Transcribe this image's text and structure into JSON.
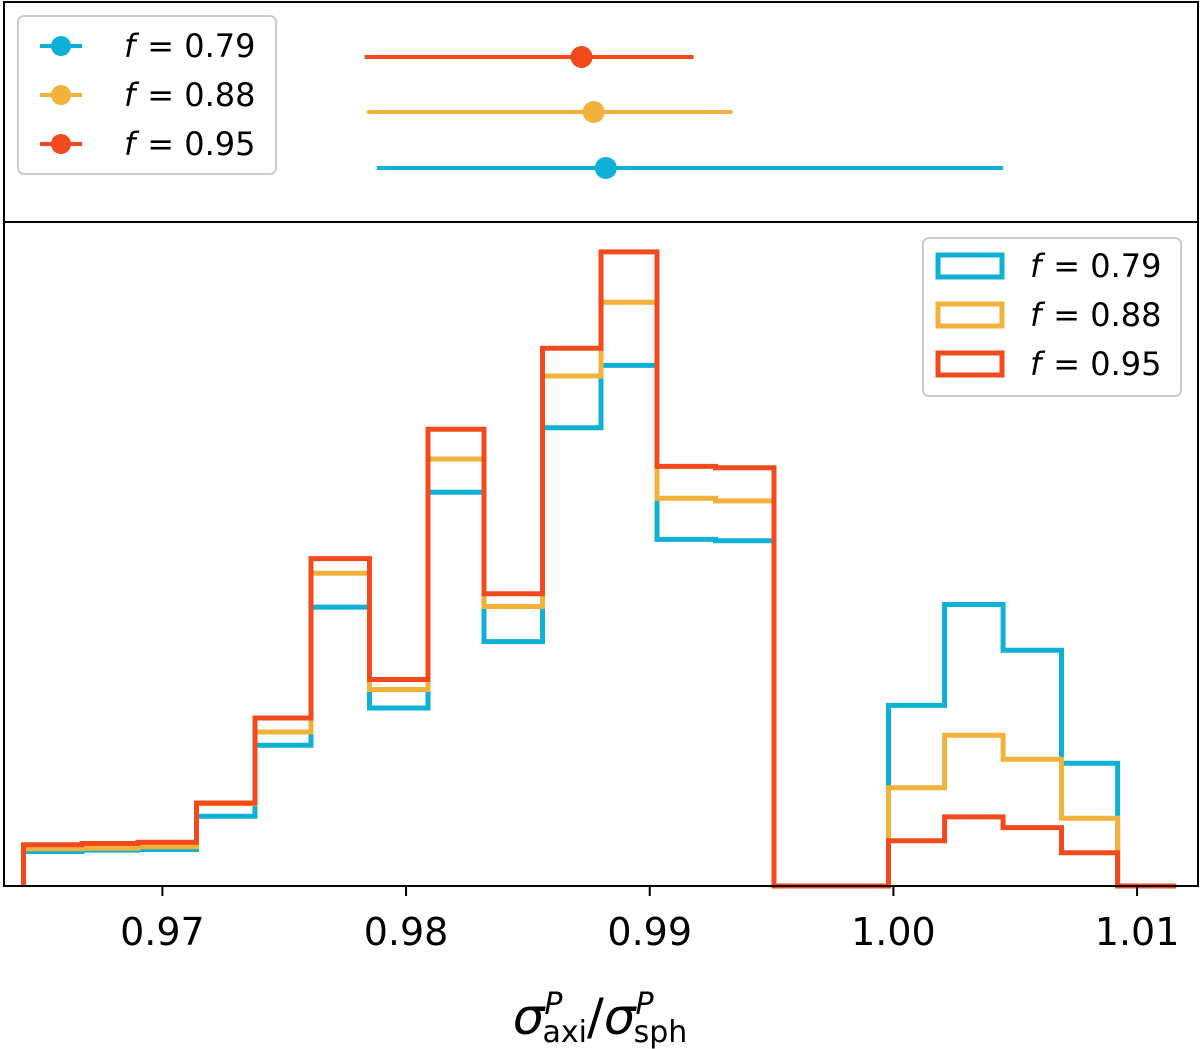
{
  "chart_data": [
    {
      "type": "errorbar",
      "panel": "top",
      "legend_position": "upper-left",
      "series": [
        {
          "name": "f = 0.79",
          "label_var": "f",
          "label_value": "= 0.79",
          "color": "#0fb0d6",
          "center": 0.9882,
          "low": 0.9788,
          "high": 1.0045
        },
        {
          "name": "f = 0.88",
          "label_var": "f",
          "label_value": "= 0.88",
          "color": "#f2b13b",
          "center": 0.9877,
          "low": 0.9784,
          "high": 0.9934
        },
        {
          "name": "f = 0.95",
          "label_var": "f",
          "label_value": "= 0.95",
          "color": "#f24a1d",
          "center": 0.9872,
          "low": 0.9783,
          "high": 0.9918
        }
      ]
    },
    {
      "type": "histogram-step",
      "panel": "bottom",
      "legend_position": "upper-right",
      "xlabel_main": "σ",
      "xlabel_sub1": "axi",
      "xlabel_sup": "P",
      "xlabel_sep": "/",
      "xlabel_sub2": "sph",
      "xlim": [
        0.9635,
        1.0125
      ],
      "ylim": [
        0,
        1
      ],
      "xticks": [
        0.97,
        0.98,
        0.99,
        1.0,
        1.01
      ],
      "xtick_labels": [
        "0.97",
        "0.98",
        "0.99",
        "1.00",
        "1.01"
      ],
      "bin_edges": [
        0.9643,
        0.9667,
        0.969,
        0.9714,
        0.9738,
        0.9761,
        0.9785,
        0.9809,
        0.9832,
        0.9856,
        0.988,
        0.9903,
        0.9927,
        0.9951,
        0.9974,
        0.9998,
        1.0021,
        1.0045,
        1.0069,
        1.0092,
        1.0116
      ],
      "series": [
        {
          "name": "f = 0.79",
          "label_var": "f",
          "label_value": "= 0.79",
          "color": "#0fb0d6",
          "values": [
            0.052,
            0.054,
            0.055,
            0.105,
            0.212,
            0.42,
            0.268,
            0.593,
            0.368,
            0.69,
            0.784,
            0.522,
            0.52,
            0,
            0,
            0.272,
            0.424,
            0.355,
            0.185,
            0
          ]
        },
        {
          "name": "f = 0.88",
          "label_var": "f",
          "label_value": "= 0.88",
          "color": "#f2b13b",
          "values": [
            0.056,
            0.057,
            0.059,
            0.124,
            0.232,
            0.471,
            0.296,
            0.643,
            0.421,
            0.768,
            0.879,
            0.584,
            0.58,
            0,
            0,
            0.148,
            0.227,
            0.191,
            0.102,
            0
          ]
        },
        {
          "name": "f = 0.95",
          "label_var": "f",
          "label_value": "= 0.95",
          "color": "#f24a1d",
          "values": [
            0.062,
            0.064,
            0.066,
            0.125,
            0.253,
            0.493,
            0.311,
            0.688,
            0.44,
            0.81,
            0.955,
            0.632,
            0.63,
            0,
            0,
            0.068,
            0.104,
            0.088,
            0.05,
            0
          ]
        }
      ]
    }
  ]
}
